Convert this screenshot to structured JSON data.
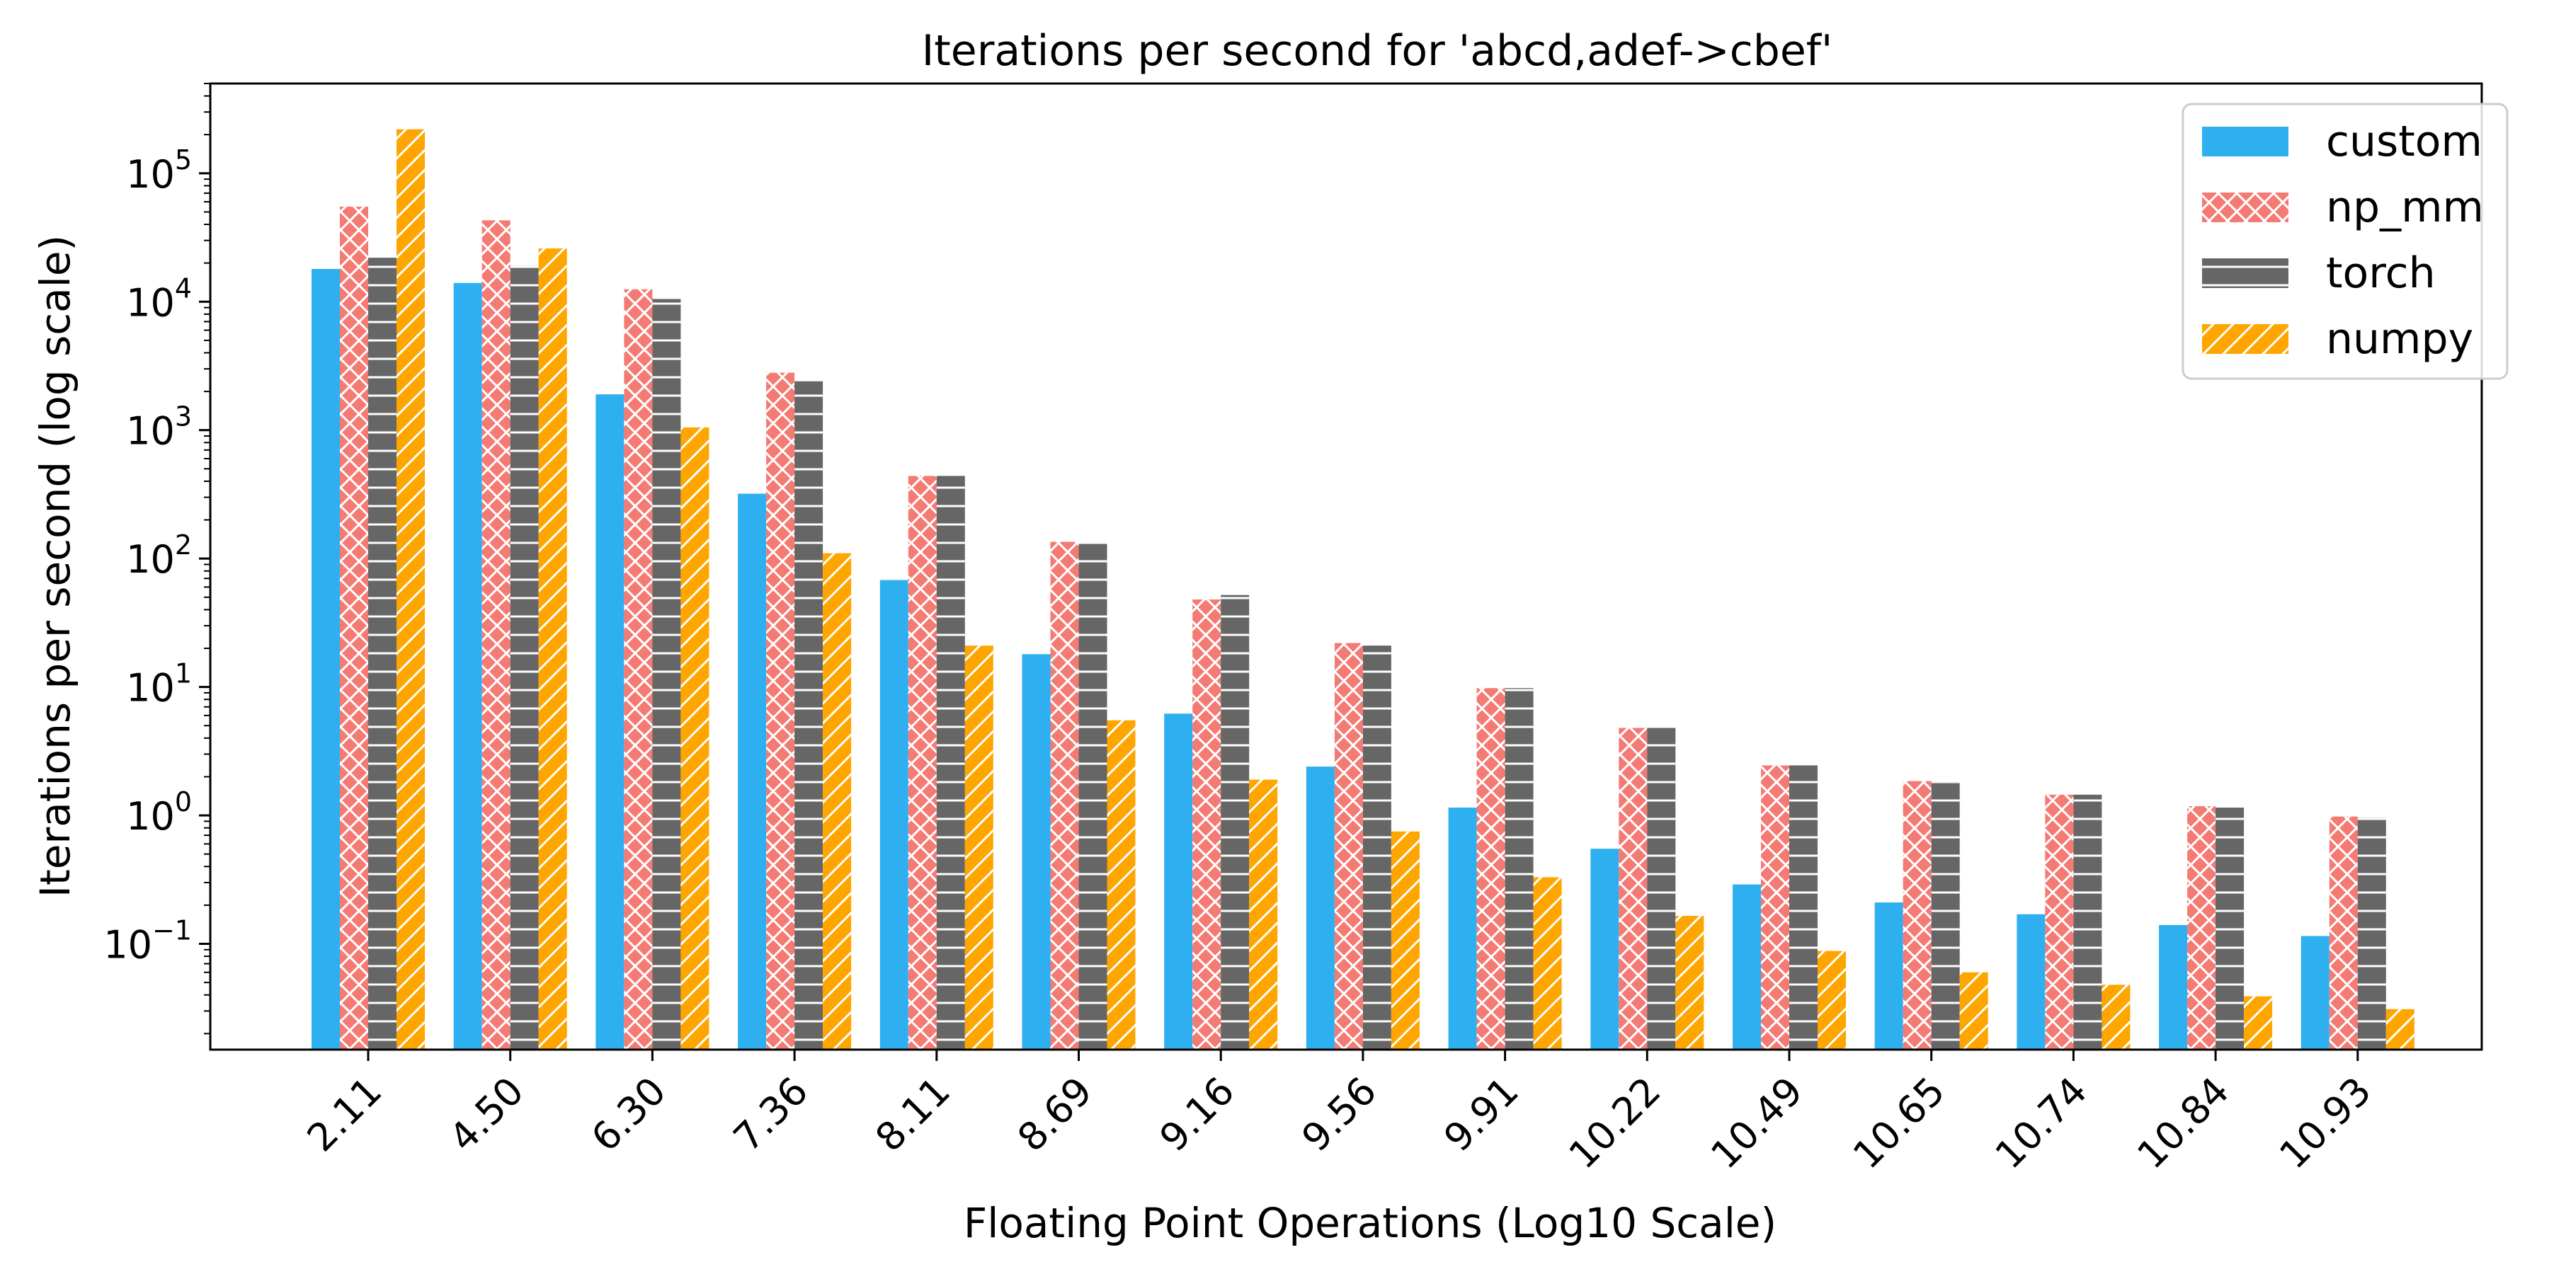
{
  "chart_data": {
    "type": "bar",
    "title": "Iterations per second for 'abcd,adef->cbef'",
    "xlabel": "Floating Point Operations (Log10 Scale)",
    "ylabel": "Iterations per second (log scale)",
    "yscale": "log",
    "ylim": [
      0.015,
      500000
    ],
    "y_ticks": [
      {
        "value": 0.1,
        "base": "10",
        "exp": "−1"
      },
      {
        "value": 1,
        "base": "10",
        "exp": "0"
      },
      {
        "value": 10,
        "base": "10",
        "exp": "1"
      },
      {
        "value": 100,
        "base": "10",
        "exp": "2"
      },
      {
        "value": 1000,
        "base": "10",
        "exp": "3"
      },
      {
        "value": 10000,
        "base": "10",
        "exp": "4"
      },
      {
        "value": 100000,
        "base": "10",
        "exp": "5"
      }
    ],
    "categories": [
      "2.11",
      "4.50",
      "6.30",
      "7.36",
      "8.11",
      "8.69",
      "9.16",
      "9.56",
      "9.91",
      "10.22",
      "10.49",
      "10.65",
      "10.74",
      "10.84",
      "10.93"
    ],
    "legend_position": "upper right",
    "grid": false,
    "series": [
      {
        "name": "custom",
        "color": "#2eaff0",
        "hatch": "none",
        "values": [
          18000,
          14000,
          1900,
          320,
          68,
          18,
          6.2,
          2.4,
          1.15,
          0.55,
          0.29,
          0.21,
          0.17,
          0.14,
          0.115
        ]
      },
      {
        "name": "np_mm",
        "color": "#f47a74",
        "hatch": "cross",
        "values": [
          55000,
          43000,
          12500,
          2800,
          440,
          135,
          48,
          22,
          9.8,
          4.8,
          2.45,
          1.85,
          1.45,
          1.18,
          0.98
        ]
      },
      {
        "name": "torch",
        "color": "#666666",
        "hatch": "horizontal",
        "values": [
          22000,
          19000,
          10500,
          2400,
          440,
          135,
          52,
          21,
          9.8,
          4.8,
          2.45,
          1.8,
          1.45,
          1.15,
          0.96
        ]
      },
      {
        "name": "numpy",
        "color": "#ffa500",
        "hatch": "diagonal",
        "values": [
          220000,
          26000,
          1050,
          110,
          21,
          5.5,
          1.9,
          0.75,
          0.33,
          0.165,
          0.088,
          0.06,
          0.048,
          0.039,
          0.031
        ]
      }
    ]
  }
}
